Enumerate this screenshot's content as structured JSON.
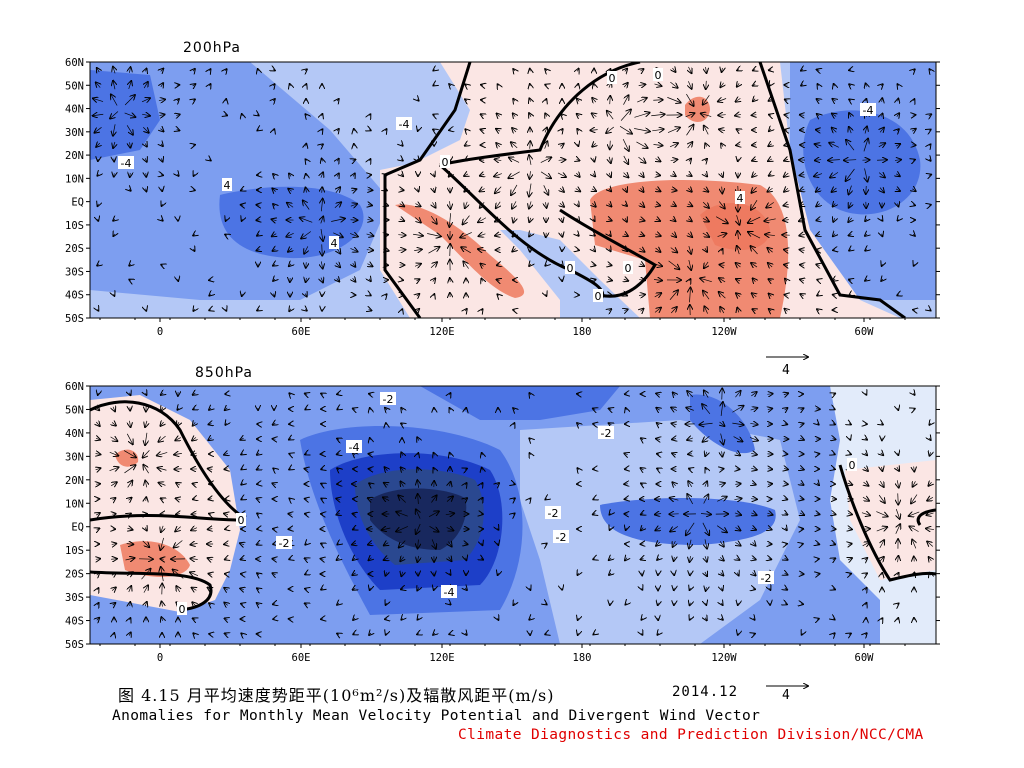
{
  "figure": {
    "caption_cn": "图 4.15 月平均速度势距平(10⁶m²/s)及辐散风距平(m/s)",
    "date": "2014.12",
    "caption_en": "Anomalies for Monthly Mean Velocity Potential and Divergent Wind Vector",
    "credit": "Climate Diagnostics and Prediction Division/NCC/CMA",
    "reference_vector_label": "4"
  },
  "colors": {
    "strong_neg": "#1d3fc8",
    "mid_neg": "#4c74e4",
    "neg": "#7d9ef0",
    "weak_neg": "#b4c8f6",
    "near_zero_neg": "#e2ebfa",
    "near_zero_pos": "#fbe6e4",
    "pos": "#f08a72",
    "core_850": "#18285e",
    "credit": "#e00000"
  },
  "axes": {
    "lat_labels": [
      "60N",
      "50N",
      "40N",
      "30N",
      "20N",
      "10N",
      "EQ",
      "10S",
      "20S",
      "30S",
      "40S",
      "50S"
    ],
    "lon_labels": [
      "0",
      "60E",
      "120E",
      "180",
      "120W",
      "60W"
    ]
  },
  "panels": [
    {
      "title": "200hPa",
      "contour_labels": [
        "0",
        "0",
        "0",
        "0",
        "0",
        "0",
        "4",
        "4",
        "4",
        "-4",
        "-4",
        "-4"
      ]
    },
    {
      "title": "850hPa",
      "contour_labels": [
        "-2",
        "-2",
        "-2",
        "-2",
        "-2",
        "-2",
        "-4",
        "-4",
        "0",
        "0",
        "0"
      ]
    }
  ]
}
